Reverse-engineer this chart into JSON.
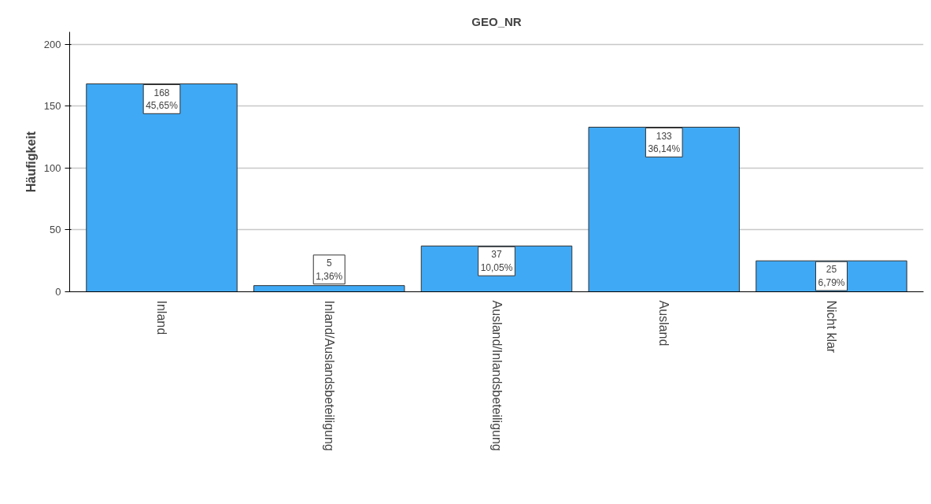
{
  "chart_data": {
    "type": "bar",
    "title": "GEO_NR",
    "ylabel": "Häufigkeit",
    "categories": [
      "Inland",
      "Inland/Auslandsbeteiligung",
      "Ausland/Inlandsbeteiligung",
      "Ausland",
      "Nicht klar"
    ],
    "values": [
      168,
      5,
      37,
      133,
      25
    ],
    "value_labels": [
      "168\n45,65%",
      "5\n1,36%",
      "37\n10,05%",
      "133\n36,14%",
      "25\n6,79%"
    ],
    "color": "#3fa9f5",
    "ylim": [
      0,
      210
    ],
    "yticks": [
      0,
      50,
      100,
      150,
      200
    ],
    "grid": "y"
  }
}
